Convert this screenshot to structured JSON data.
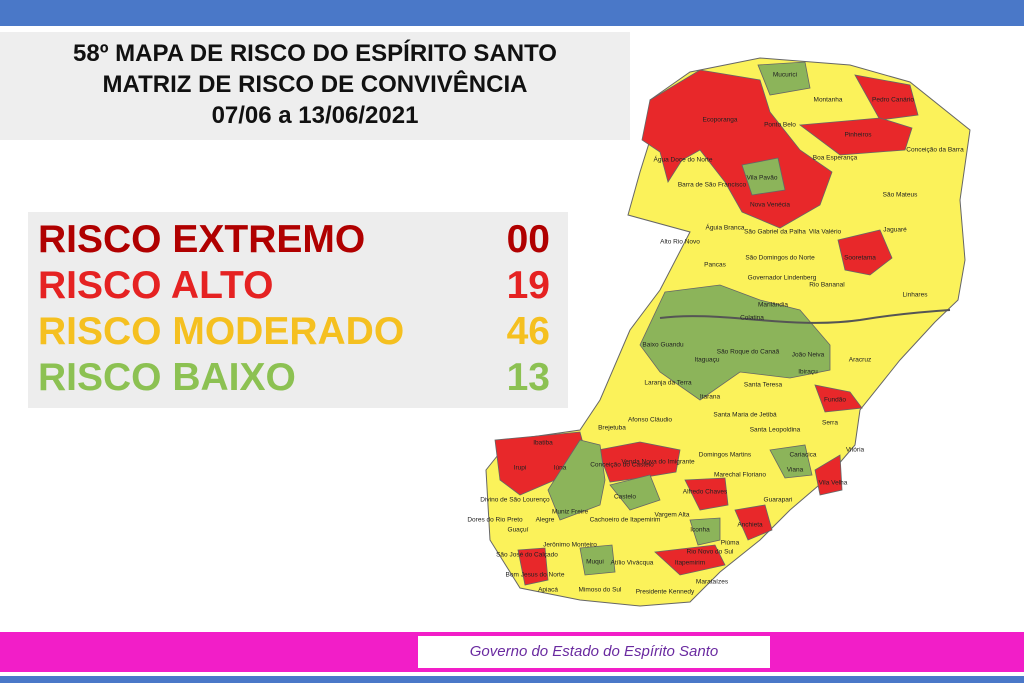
{
  "header": {
    "lines": [
      "58º MAPA DE RISCO DO ESPÍRITO SANTO",
      "MATRIZ DE RISCO DE CONVIVÊNCIA",
      "07/06 a 13/06/2021"
    ]
  },
  "legend": [
    {
      "label": "RISCO EXTREMO",
      "count": "00",
      "color": "#b00000"
    },
    {
      "label": "RISCO ALTO",
      "count": "19",
      "color": "#e52222"
    },
    {
      "label": "RISCO MODERADO",
      "count": "46",
      "color": "#f5c020"
    },
    {
      "label": "RISCO BAIXO",
      "count": "13",
      "color": "#8cc152"
    }
  ],
  "map": {
    "municipalities": [
      "Mucurici",
      "Montanha",
      "Pedro Canário",
      "Ecoporanga",
      "Ponto Belo",
      "Pinheiros",
      "Conceição da Barra",
      "Água Doce do Norte",
      "Boa Esperança",
      "Barra de São Francisco",
      "Vila Pavão",
      "São Mateus",
      "Nova Venécia",
      "Águia Branca",
      "São Gabriel da Palha",
      "Vila Valério",
      "Jaguaré",
      "Alto Rio Novo",
      "Sooretama",
      "Pancas",
      "São Domingos do Norte",
      "Governador Lindenberg",
      "Rio Bananal",
      "Linhares",
      "Marilândia",
      "Colatina",
      "Baixo Guandu",
      "Aracruz",
      "Itaguaçu",
      "São Roque do Canaã",
      "João Neiva",
      "Laranja da Terra",
      "Ibiraçu",
      "Santa Teresa",
      "Itarana",
      "Fundão",
      "Afonso Cláudio",
      "Santa Maria de Jetibá",
      "Santa Leopoldina",
      "Serra",
      "Brejetuba",
      "Domingos Martins",
      "Cariacica",
      "Vitória",
      "Ibatiba",
      "Venda Nova do Imigrante",
      "Viana",
      "Vila Velha",
      "Marechal Floriano",
      "Iúna",
      "Conceição do Castelo",
      "Irupi",
      "Muniz Freire",
      "Alfredo Chaves",
      "Guarapari",
      "Castelo",
      "Divino de São Lourenço",
      "Dores do Rio Preto",
      "Guaçuí",
      "Alegre",
      "Cachoeiro de Itapemirim",
      "Vargem Alta",
      "Anchieta",
      "Iconha",
      "Piúma",
      "Rio Novo do Sul",
      "Jerônimo Monteiro",
      "Muqui",
      "Atílio Vivácqua",
      "Itapemirim",
      "São José do Calçado",
      "Bom Jesus do Norte",
      "Apiacá",
      "Mimoso do Sul",
      "Presidente Kennedy",
      "Marataízes"
    ]
  },
  "footer": {
    "text": "Governo do Estado do Espírito Santo"
  }
}
